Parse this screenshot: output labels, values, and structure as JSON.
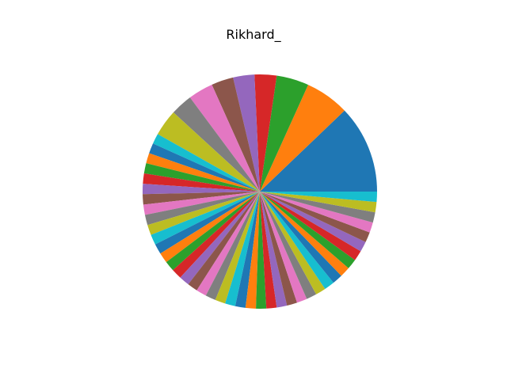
{
  "chart_data": {
    "type": "pie",
    "title": "Rikhard_",
    "start_angle_deg": 0,
    "direction": "counterclockwise",
    "values": [
      12.0,
      6.0,
      4.4,
      3.0,
      2.9,
      3.0,
      3.4,
      3.0,
      3.6,
      1.4,
      1.4,
      1.4,
      1.4,
      1.4,
      1.4,
      1.4,
      1.4,
      1.4,
      1.4,
      1.4,
      1.4,
      1.4,
      1.4,
      1.4,
      1.4,
      1.4,
      1.4,
      1.4,
      1.4,
      1.4,
      1.4,
      1.4,
      1.4,
      1.4,
      1.4,
      1.4,
      1.4,
      1.4,
      1.4,
      1.4,
      1.4,
      1.4,
      1.4,
      1.4,
      1.4,
      1.4,
      1.4,
      1.4,
      1.4,
      1.4
    ],
    "colors": [
      "#1f77b4",
      "#ff7f0e",
      "#2ca02c",
      "#d62728",
      "#9467bd",
      "#8c564b",
      "#e377c2",
      "#7f7f7f",
      "#bcbd22",
      "#17becf"
    ]
  }
}
